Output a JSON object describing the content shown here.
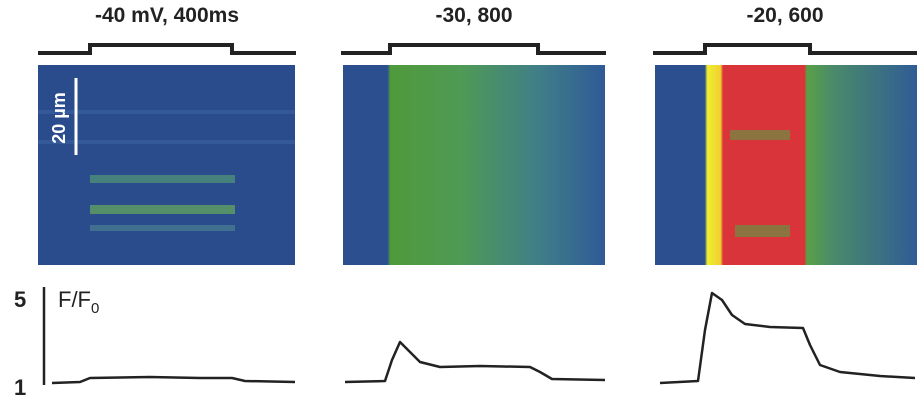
{
  "panels": [
    {
      "label": "-40 mV, 400ms"
    },
    {
      "label": "-30, 800"
    },
    {
      "label": "-20, 600"
    }
  ],
  "scale_bar": {
    "label": "20 µm"
  },
  "y_scale": {
    "label": "F/F",
    "subscript": "0",
    "top": 5,
    "bottom": 1
  }
}
